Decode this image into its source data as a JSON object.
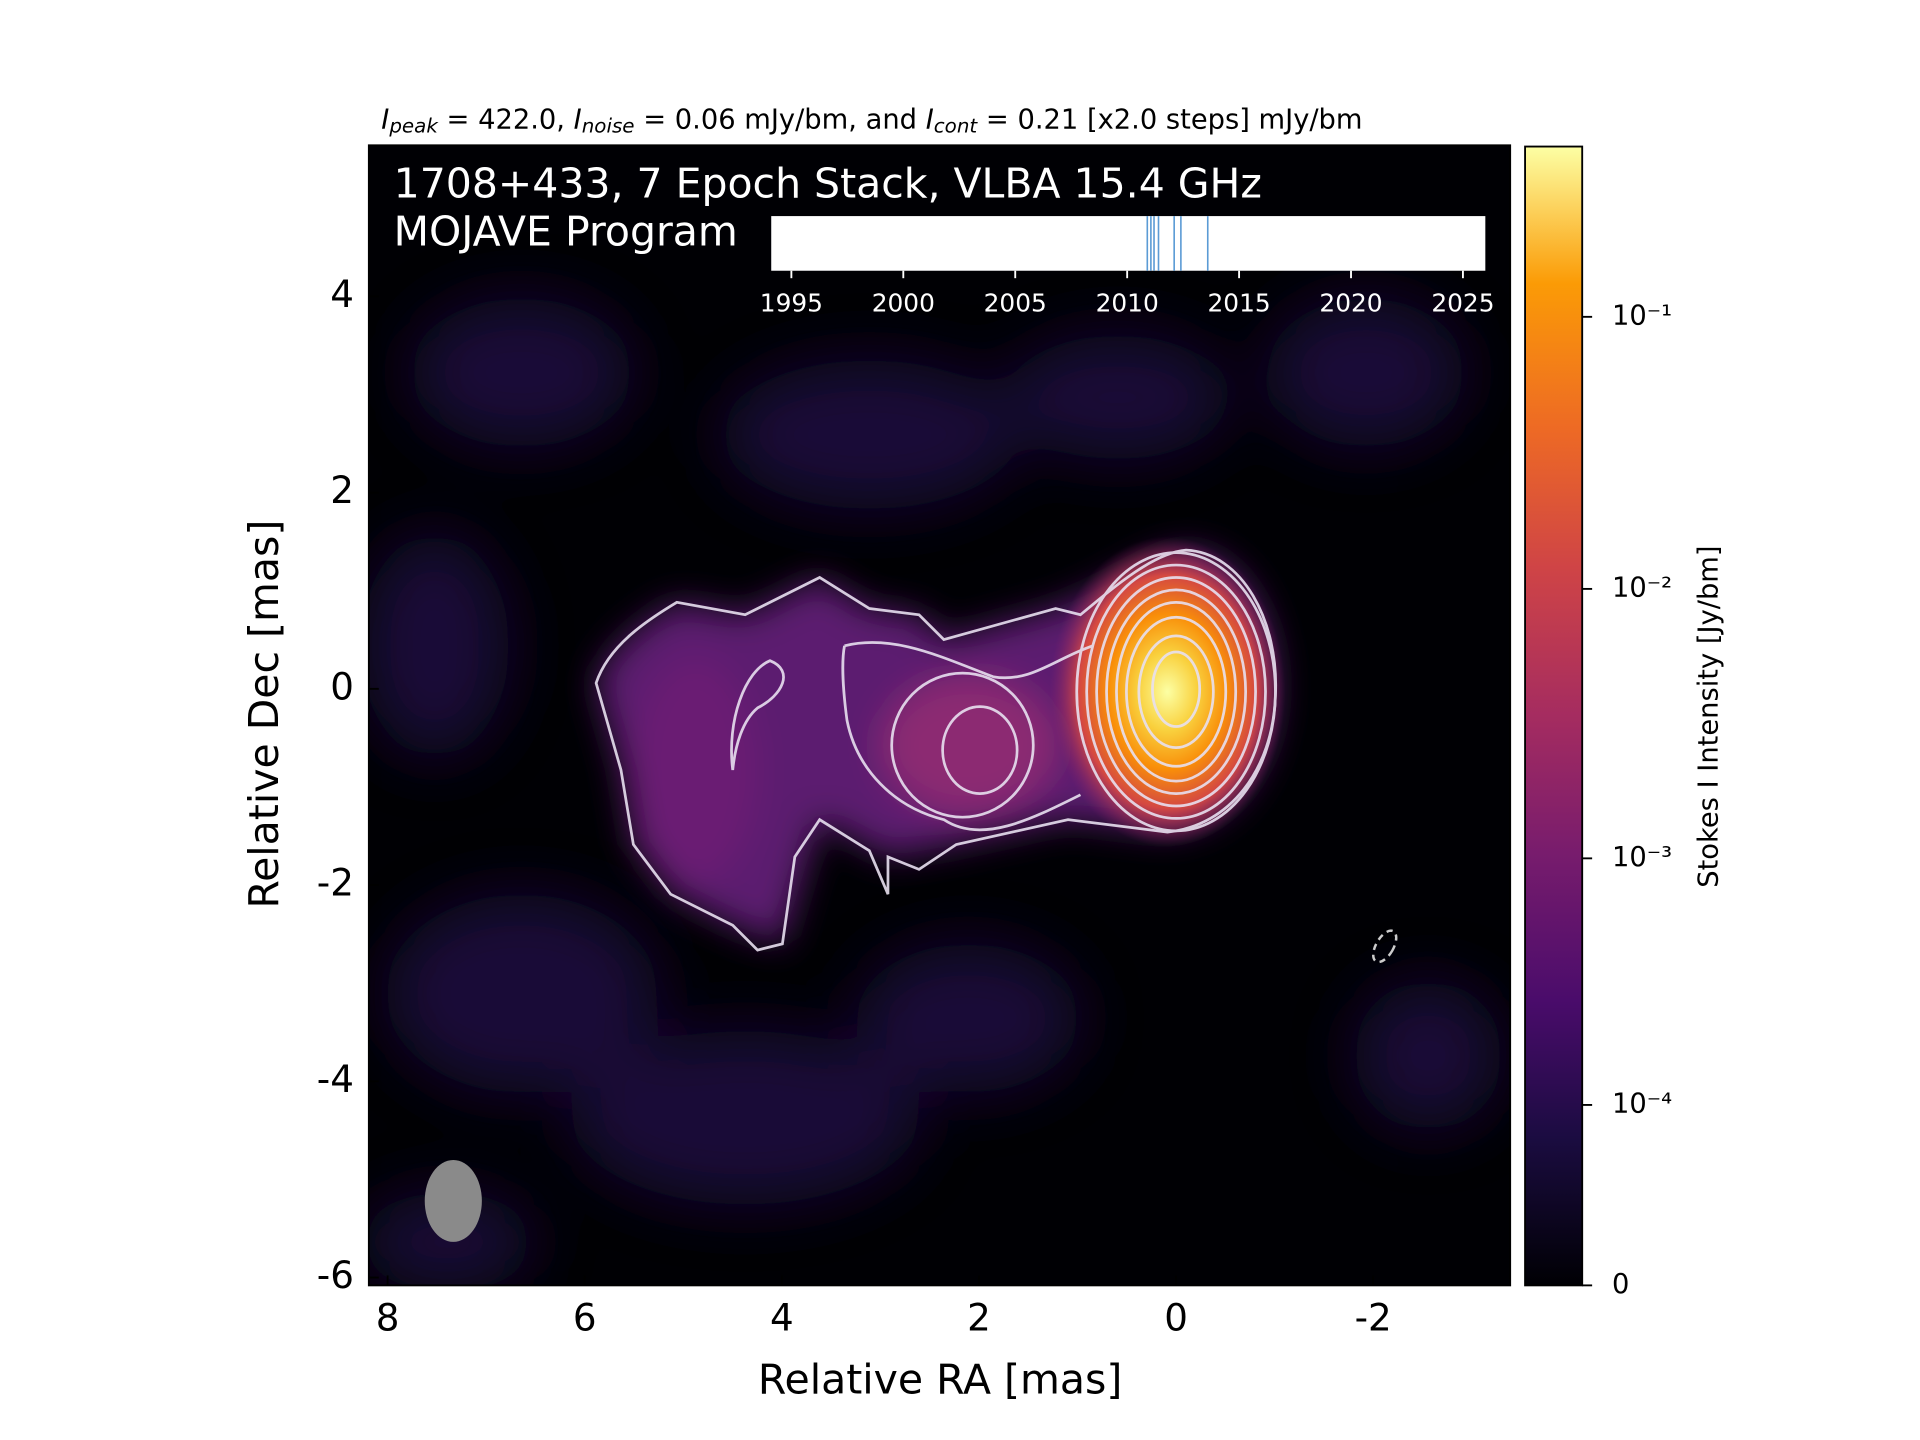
{
  "chart_data": [
    {
      "type": "image",
      "subtitle": [
        {
          "symbol": "I",
          "subscript": "peak"
        },
        " = 422.0, ",
        {
          "symbol": "I",
          "subscript": "noise"
        },
        " = 0.06 mJy/bm, and ",
        {
          "symbol": "I",
          "subscript": "cont"
        },
        " = 0.21 [x2.0 steps] mJy/bm"
      ],
      "title": "1708+433, 7 Epoch Stack, VLBA 15.4 GHz",
      "program": "MOJAVE Program",
      "xlabel": "Relative RA [mas]",
      "ylabel": "Relative Dec [mas]",
      "xlim": [
        8.19,
        -3.39
      ],
      "xticks": [
        8,
        6,
        4,
        2,
        0,
        -2
      ],
      "ylim": [
        -6.08,
        5.54
      ],
      "yticks": [
        4,
        2,
        0,
        -2,
        -4,
        -6
      ],
      "colorbar": {
        "label": "Stokes I Intensity [Jy/bm]",
        "lim": [
          0,
          0.422
        ],
        "ticks": [
          {
            "value": 0.1,
            "label": "10⁻¹"
          },
          {
            "value": 0.01,
            "label": "10⁻²"
          },
          {
            "value": 0.001,
            "label": "10⁻³"
          },
          {
            "value": 0.0001,
            "label": "10⁻⁴"
          },
          0
        ]
      }
    },
    {
      "type": "timeline",
      "xlim": [
        1994.1,
        2026.0
      ],
      "xticks": [
        1995,
        2000,
        2005,
        2010,
        2015,
        2020,
        2025
      ],
      "x": [
        2010.9,
        2011.06,
        2011.2,
        2011.4,
        2012.1,
        2012.4,
        2013.6
      ],
      "color": "#5b9bd5"
    }
  ]
}
